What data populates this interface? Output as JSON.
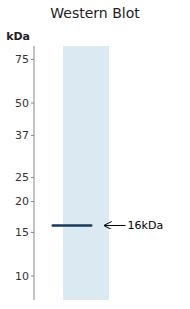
{
  "chart_data": {
    "type": "blot",
    "title": "Western Blot",
    "ylabel": "kDa",
    "values": [
      16
    ],
    "value_labels": [
      "16kDa"
    ],
    "data_labels": true,
    "color": "#1a3a5c",
    "log": "y",
    "ylim": [
      8,
      85
    ],
    "yticks": [
      75,
      50,
      37,
      25,
      20,
      15,
      10
    ]
  }
}
